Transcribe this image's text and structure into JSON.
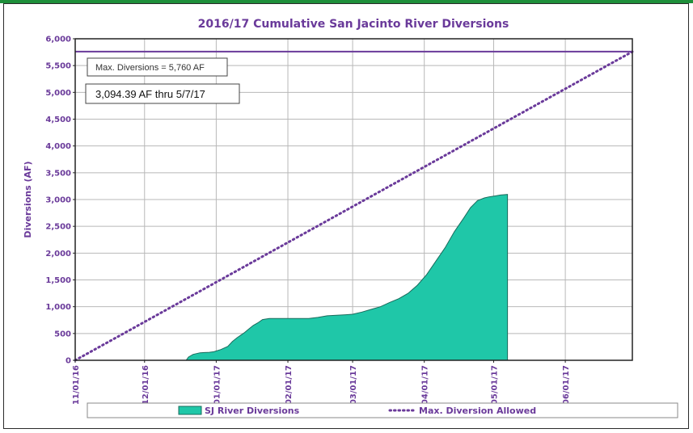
{
  "colors": {
    "accent": "#6a3a9a",
    "area_fill": "#1fc7a8",
    "area_stroke": "#1a6b5c",
    "top_bar": "#1e8f3a"
  },
  "chart_data": {
    "type": "area",
    "title": "2016/17 Cumulative San Jacinto River Diversions",
    "xlabel": "",
    "ylabel": "Diversions (AF)",
    "ylim": [
      0,
      6000
    ],
    "yticks": [
      0,
      500,
      1000,
      1500,
      2000,
      2500,
      3000,
      3500,
      4000,
      4500,
      5000,
      5500,
      6000
    ],
    "ytick_labels": [
      "0",
      "500",
      "1,000",
      "1,500",
      "2,000",
      "2,500",
      "3,000",
      "3,500",
      "4,000",
      "4,500",
      "5,000",
      "5,500",
      "6,000"
    ],
    "xlim": [
      "2016-11-01",
      "2017-06-30"
    ],
    "xticks": [
      "2016-11-01",
      "2016-12-01",
      "2017-01-01",
      "2017-02-01",
      "2017-03-01",
      "2017-04-01",
      "2017-05-01",
      "2017-06-01"
    ],
    "xtick_labels": [
      "11/01/16",
      "12/01/16",
      "01/01/17",
      "02/01/17",
      "03/01/17",
      "04/01/17",
      "05/01/17",
      "06/01/17"
    ],
    "grid": true,
    "legend_position": "bottom",
    "series": [
      {
        "name": "SJ River Diversions",
        "type": "area",
        "x": [
          "2016-12-19",
          "2016-12-20",
          "2016-12-22",
          "2016-12-25",
          "2016-12-29",
          "2016-12-31",
          "2017-01-03",
          "2017-01-06",
          "2017-01-08",
          "2017-01-10",
          "2017-01-13",
          "2017-01-15",
          "2017-01-17",
          "2017-01-19",
          "2017-01-21",
          "2017-01-24",
          "2017-01-26",
          "2017-01-28",
          "2017-02-01",
          "2017-02-05",
          "2017-02-10",
          "2017-02-14",
          "2017-02-18",
          "2017-02-22",
          "2017-02-26",
          "2017-03-01",
          "2017-03-05",
          "2017-03-09",
          "2017-03-13",
          "2017-03-17",
          "2017-03-21",
          "2017-03-25",
          "2017-03-29",
          "2017-04-02",
          "2017-04-06",
          "2017-04-10",
          "2017-04-14",
          "2017-04-18",
          "2017-04-21",
          "2017-04-24",
          "2017-04-27",
          "2017-04-29",
          "2017-05-02",
          "2017-05-04",
          "2017-05-07",
          "2017-05-07"
        ],
        "y": [
          0,
          60,
          110,
          140,
          150,
          160,
          200,
          260,
          350,
          420,
          510,
          580,
          650,
          700,
          760,
          780,
          780,
          780,
          780,
          780,
          780,
          800,
          830,
          840,
          850,
          860,
          900,
          950,
          1000,
          1080,
          1150,
          1250,
          1400,
          1600,
          1850,
          2100,
          2400,
          2650,
          2850,
          2980,
          3030,
          3050,
          3070,
          3085,
          3094.39,
          0
        ]
      },
      {
        "name": "Max. Diversion Allowed",
        "type": "dotted-line",
        "x": [
          "2016-11-01",
          "2017-06-30"
        ],
        "y": [
          0,
          5760
        ]
      }
    ],
    "reference_lines": [
      {
        "y": 5760
      }
    ],
    "annotations": [
      {
        "text": "Max. Diversions = 5,760 AF"
      },
      {
        "text": "3,094.39 AF thru 5/7/17"
      }
    ]
  }
}
